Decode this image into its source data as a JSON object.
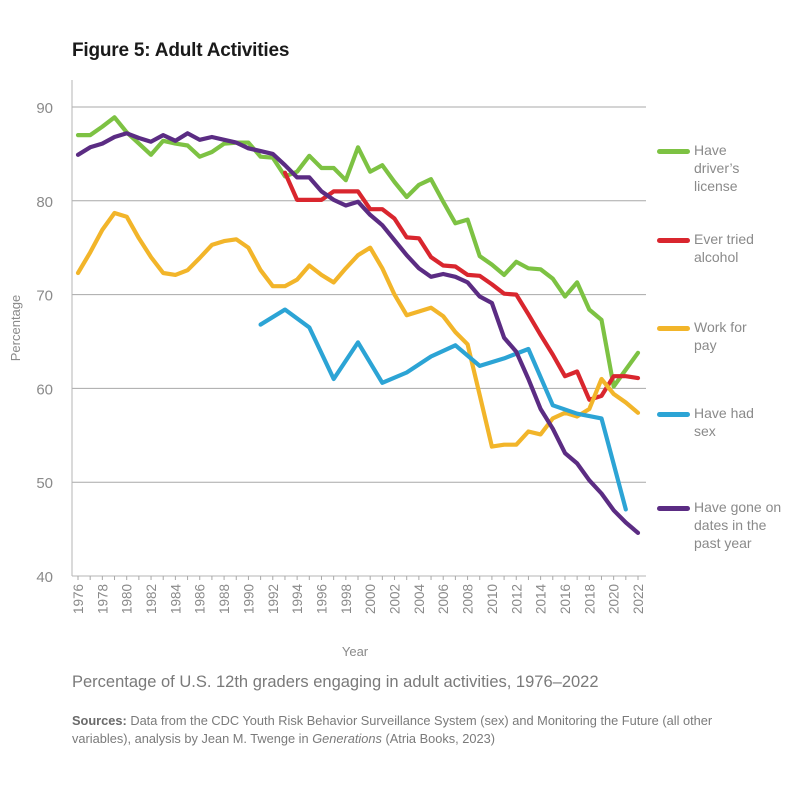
{
  "title": "Figure 5: Adult Activities",
  "caption": "Percentage of U.S. 12th graders engaging in adult activities, 1976–2022",
  "sources": {
    "label": "Sources:",
    "text_before_italic": " Data from the CDC Youth Risk Behavior Surveillance System (sex) and Monitoring the Future (all other variables), analysis by Jean M. Twenge in ",
    "italic": "Generations",
    "text_after_italic": " (Atria Books, 2023)"
  },
  "chart_data": {
    "type": "line",
    "title": "Figure 5: Adult Activities",
    "xlabel": "Year",
    "ylabel": "Percentage",
    "xlim": [
      1976,
      2022
    ],
    "ylim": [
      40,
      90
    ],
    "yticks": [
      40,
      50,
      60,
      70,
      80,
      90
    ],
    "xticks": [
      1976,
      1978,
      1980,
      1982,
      1984,
      1986,
      1988,
      1990,
      1992,
      1994,
      1996,
      1998,
      2000,
      2002,
      2004,
      2006,
      2008,
      2010,
      2012,
      2014,
      2016,
      2018,
      2020,
      2022
    ],
    "grid": "horizontal",
    "legend_position": "right",
    "series": [
      {
        "name": "Have driver's license",
        "color": "#7dc243",
        "x": [
          1976,
          1977,
          1978,
          1979,
          1980,
          1981,
          1982,
          1983,
          1984,
          1985,
          1986,
          1987,
          1988,
          1989,
          1990,
          1991,
          1992,
          1993,
          1994,
          1995,
          1996,
          1997,
          1998,
          1999,
          2000,
          2001,
          2002,
          2003,
          2004,
          2005,
          2006,
          2007,
          2008,
          2009,
          2010,
          2011,
          2012,
          2013,
          2014,
          2015,
          2016,
          2017,
          2018,
          2019,
          2020,
          2021,
          2022
        ],
        "values": [
          87.0,
          87.0,
          87.9,
          88.9,
          87.3,
          86.1,
          84.9,
          86.4,
          86.1,
          85.9,
          84.7,
          85.2,
          86.1,
          86.2,
          86.2,
          84.7,
          84.6,
          82.6,
          83.1,
          84.8,
          83.5,
          83.5,
          82.2,
          85.7,
          83.1,
          83.8,
          82.0,
          80.4,
          81.7,
          82.3,
          79.9,
          77.6,
          78.0,
          74.1,
          73.2,
          72.1,
          73.5,
          72.8,
          72.7,
          71.7,
          69.8,
          71.3,
          68.4,
          67.3,
          60.2,
          62.0,
          63.8
        ]
      },
      {
        "name": "Ever tried alcohol",
        "color": "#d9262e",
        "x": [
          1993,
          1994,
          1995,
          1996,
          1997,
          1998,
          1999,
          2000,
          2001,
          2002,
          2003,
          2004,
          2005,
          2006,
          2007,
          2008,
          2009,
          2010,
          2011,
          2012,
          2013,
          2014,
          2015,
          2016,
          2017,
          2018,
          2019,
          2020,
          2021,
          2022
        ],
        "values": [
          83.0,
          80.1,
          80.1,
          80.1,
          81.0,
          81.0,
          81.0,
          79.1,
          79.1,
          78.1,
          76.1,
          76.0,
          74.0,
          73.1,
          73.0,
          72.1,
          72.0,
          71.1,
          70.1,
          70.0,
          67.9,
          65.7,
          63.6,
          61.3,
          61.8,
          58.8,
          59.2,
          61.3,
          61.3,
          61.1
        ]
      },
      {
        "name": "Work for pay",
        "color": "#f2b52a",
        "x": [
          1976,
          1977,
          1978,
          1979,
          1980,
          1981,
          1982,
          1983,
          1984,
          1985,
          1986,
          1987,
          1988,
          1989,
          1990,
          1991,
          1992,
          1993,
          1994,
          1995,
          1996,
          1997,
          1998,
          1999,
          2000,
          2001,
          2002,
          2003,
          2004,
          2005,
          2006,
          2007,
          2008,
          2009,
          2010,
          2011,
          2012,
          2013,
          2014,
          2015,
          2016,
          2017,
          2018,
          2019,
          2020,
          2021,
          2022
        ],
        "values": [
          72.3,
          74.5,
          76.9,
          78.7,
          78.3,
          76.0,
          74.0,
          72.3,
          72.1,
          72.6,
          73.9,
          75.3,
          75.7,
          75.9,
          75.0,
          72.6,
          70.9,
          70.9,
          71.6,
          73.1,
          72.1,
          71.3,
          72.8,
          74.2,
          75.0,
          72.8,
          70.0,
          67.8,
          68.2,
          68.6,
          67.7,
          66.0,
          64.7,
          59.3,
          53.8,
          54.0,
          54.0,
          55.4,
          55.1,
          56.8,
          57.4,
          57.0,
          57.8,
          61.0,
          59.4,
          58.5,
          57.4
        ]
      },
      {
        "name": "Have had sex",
        "color": "#2ca4d5",
        "x": [
          1991,
          1993,
          1995,
          1997,
          1999,
          2001,
          2003,
          2005,
          2007,
          2009,
          2011,
          2013,
          2015,
          2017,
          2019,
          2021
        ],
        "values": [
          66.8,
          68.4,
          66.5,
          61.0,
          64.9,
          60.6,
          61.7,
          63.4,
          64.6,
          62.4,
          63.2,
          64.2,
          58.2,
          57.3,
          56.8,
          47.1
        ]
      },
      {
        "name": "Have gone on dates in the past year",
        "color": "#5b2c83",
        "x": [
          1976,
          1977,
          1978,
          1979,
          1980,
          1981,
          1982,
          1983,
          1984,
          1985,
          1986,
          1987,
          1988,
          1989,
          1990,
          1991,
          1992,
          1993,
          1994,
          1995,
          1996,
          1997,
          1998,
          1999,
          2000,
          2001,
          2002,
          2003,
          2004,
          2005,
          2006,
          2007,
          2008,
          2009,
          2010,
          2011,
          2012,
          2013,
          2014,
          2015,
          2016,
          2017,
          2018,
          2019,
          2020,
          2021,
          2022
        ],
        "values": [
          84.9,
          85.7,
          86.1,
          86.8,
          87.2,
          86.7,
          86.3,
          87.0,
          86.4,
          87.2,
          86.5,
          86.8,
          86.5,
          86.2,
          85.6,
          85.3,
          85.0,
          83.8,
          82.5,
          82.5,
          81.0,
          80.1,
          79.5,
          79.9,
          78.5,
          77.4,
          75.8,
          74.2,
          72.8,
          71.9,
          72.2,
          71.9,
          71.3,
          69.8,
          69.1,
          65.4,
          63.9,
          61.0,
          57.8,
          55.7,
          53.1,
          52.0,
          50.2,
          48.8,
          47.0,
          45.7,
          44.6
        ]
      }
    ]
  },
  "legend": [
    {
      "label": "Have\ndriver’s\nlicense",
      "color": "#7dc243"
    },
    {
      "label": "Ever tried\nalcohol",
      "color": "#d9262e"
    },
    {
      "label": "Work for\npay",
      "color": "#f2b52a"
    },
    {
      "label": "Have had\nsex",
      "color": "#2ca4d5"
    },
    {
      "label": "Have gone on\ndates in the\npast year",
      "color": "#5b2c83"
    }
  ]
}
